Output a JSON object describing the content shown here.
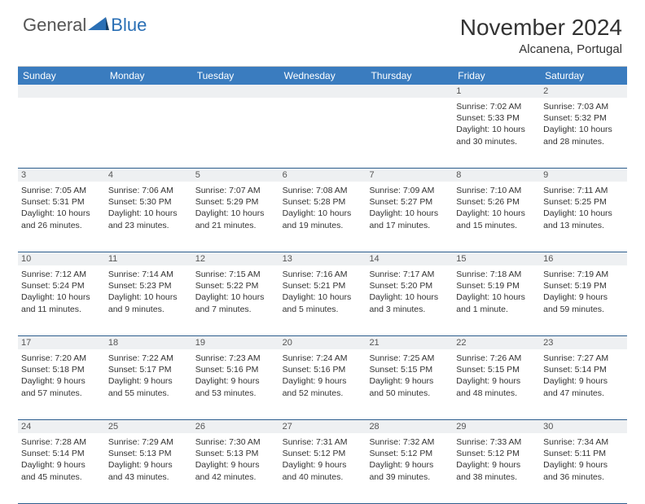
{
  "brand": {
    "text1": "General",
    "text2": "Blue"
  },
  "title": "November 2024",
  "subtitle": "Alcanena, Portugal",
  "colors": {
    "header_bg": "#3a7cbf",
    "brand_blue": "#2a6fb5",
    "row_divider": "#2d5e8e",
    "number_bg": "#eef0f2"
  },
  "dayNames": [
    "Sunday",
    "Monday",
    "Tuesday",
    "Wednesday",
    "Thursday",
    "Friday",
    "Saturday"
  ],
  "weeks": [
    [
      {
        "n": "",
        "sr": "",
        "ss": "",
        "dl": ""
      },
      {
        "n": "",
        "sr": "",
        "ss": "",
        "dl": ""
      },
      {
        "n": "",
        "sr": "",
        "ss": "",
        "dl": ""
      },
      {
        "n": "",
        "sr": "",
        "ss": "",
        "dl": ""
      },
      {
        "n": "",
        "sr": "",
        "ss": "",
        "dl": ""
      },
      {
        "n": "1",
        "sr": "Sunrise: 7:02 AM",
        "ss": "Sunset: 5:33 PM",
        "dl": "Daylight: 10 hours and 30 minutes."
      },
      {
        "n": "2",
        "sr": "Sunrise: 7:03 AM",
        "ss": "Sunset: 5:32 PM",
        "dl": "Daylight: 10 hours and 28 minutes."
      }
    ],
    [
      {
        "n": "3",
        "sr": "Sunrise: 7:05 AM",
        "ss": "Sunset: 5:31 PM",
        "dl": "Daylight: 10 hours and 26 minutes."
      },
      {
        "n": "4",
        "sr": "Sunrise: 7:06 AM",
        "ss": "Sunset: 5:30 PM",
        "dl": "Daylight: 10 hours and 23 minutes."
      },
      {
        "n": "5",
        "sr": "Sunrise: 7:07 AM",
        "ss": "Sunset: 5:29 PM",
        "dl": "Daylight: 10 hours and 21 minutes."
      },
      {
        "n": "6",
        "sr": "Sunrise: 7:08 AM",
        "ss": "Sunset: 5:28 PM",
        "dl": "Daylight: 10 hours and 19 minutes."
      },
      {
        "n": "7",
        "sr": "Sunrise: 7:09 AM",
        "ss": "Sunset: 5:27 PM",
        "dl": "Daylight: 10 hours and 17 minutes."
      },
      {
        "n": "8",
        "sr": "Sunrise: 7:10 AM",
        "ss": "Sunset: 5:26 PM",
        "dl": "Daylight: 10 hours and 15 minutes."
      },
      {
        "n": "9",
        "sr": "Sunrise: 7:11 AM",
        "ss": "Sunset: 5:25 PM",
        "dl": "Daylight: 10 hours and 13 minutes."
      }
    ],
    [
      {
        "n": "10",
        "sr": "Sunrise: 7:12 AM",
        "ss": "Sunset: 5:24 PM",
        "dl": "Daylight: 10 hours and 11 minutes."
      },
      {
        "n": "11",
        "sr": "Sunrise: 7:14 AM",
        "ss": "Sunset: 5:23 PM",
        "dl": "Daylight: 10 hours and 9 minutes."
      },
      {
        "n": "12",
        "sr": "Sunrise: 7:15 AM",
        "ss": "Sunset: 5:22 PM",
        "dl": "Daylight: 10 hours and 7 minutes."
      },
      {
        "n": "13",
        "sr": "Sunrise: 7:16 AM",
        "ss": "Sunset: 5:21 PM",
        "dl": "Daylight: 10 hours and 5 minutes."
      },
      {
        "n": "14",
        "sr": "Sunrise: 7:17 AM",
        "ss": "Sunset: 5:20 PM",
        "dl": "Daylight: 10 hours and 3 minutes."
      },
      {
        "n": "15",
        "sr": "Sunrise: 7:18 AM",
        "ss": "Sunset: 5:19 PM",
        "dl": "Daylight: 10 hours and 1 minute."
      },
      {
        "n": "16",
        "sr": "Sunrise: 7:19 AM",
        "ss": "Sunset: 5:19 PM",
        "dl": "Daylight: 9 hours and 59 minutes."
      }
    ],
    [
      {
        "n": "17",
        "sr": "Sunrise: 7:20 AM",
        "ss": "Sunset: 5:18 PM",
        "dl": "Daylight: 9 hours and 57 minutes."
      },
      {
        "n": "18",
        "sr": "Sunrise: 7:22 AM",
        "ss": "Sunset: 5:17 PM",
        "dl": "Daylight: 9 hours and 55 minutes."
      },
      {
        "n": "19",
        "sr": "Sunrise: 7:23 AM",
        "ss": "Sunset: 5:16 PM",
        "dl": "Daylight: 9 hours and 53 minutes."
      },
      {
        "n": "20",
        "sr": "Sunrise: 7:24 AM",
        "ss": "Sunset: 5:16 PM",
        "dl": "Daylight: 9 hours and 52 minutes."
      },
      {
        "n": "21",
        "sr": "Sunrise: 7:25 AM",
        "ss": "Sunset: 5:15 PM",
        "dl": "Daylight: 9 hours and 50 minutes."
      },
      {
        "n": "22",
        "sr": "Sunrise: 7:26 AM",
        "ss": "Sunset: 5:15 PM",
        "dl": "Daylight: 9 hours and 48 minutes."
      },
      {
        "n": "23",
        "sr": "Sunrise: 7:27 AM",
        "ss": "Sunset: 5:14 PM",
        "dl": "Daylight: 9 hours and 47 minutes."
      }
    ],
    [
      {
        "n": "24",
        "sr": "Sunrise: 7:28 AM",
        "ss": "Sunset: 5:14 PM",
        "dl": "Daylight: 9 hours and 45 minutes."
      },
      {
        "n": "25",
        "sr": "Sunrise: 7:29 AM",
        "ss": "Sunset: 5:13 PM",
        "dl": "Daylight: 9 hours and 43 minutes."
      },
      {
        "n": "26",
        "sr": "Sunrise: 7:30 AM",
        "ss": "Sunset: 5:13 PM",
        "dl": "Daylight: 9 hours and 42 minutes."
      },
      {
        "n": "27",
        "sr": "Sunrise: 7:31 AM",
        "ss": "Sunset: 5:12 PM",
        "dl": "Daylight: 9 hours and 40 minutes."
      },
      {
        "n": "28",
        "sr": "Sunrise: 7:32 AM",
        "ss": "Sunset: 5:12 PM",
        "dl": "Daylight: 9 hours and 39 minutes."
      },
      {
        "n": "29",
        "sr": "Sunrise: 7:33 AM",
        "ss": "Sunset: 5:12 PM",
        "dl": "Daylight: 9 hours and 38 minutes."
      },
      {
        "n": "30",
        "sr": "Sunrise: 7:34 AM",
        "ss": "Sunset: 5:11 PM",
        "dl": "Daylight: 9 hours and 36 minutes."
      }
    ]
  ]
}
